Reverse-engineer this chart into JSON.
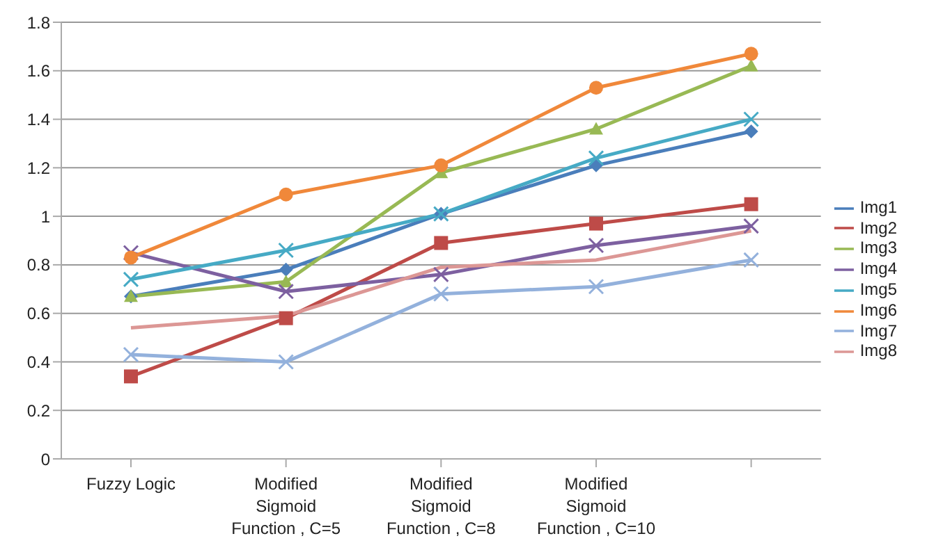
{
  "chart_data": {
    "type": "line",
    "categories": [
      "Fuzzy Logic",
      "Modified Sigmoid Function , C=5",
      "Modified Sigmoid Function , C=8",
      "Modified Sigmoid Function , C=10",
      null
    ],
    "series": [
      {
        "name": "Img1",
        "color": "#4a7ebb",
        "marker": "diamond",
        "values": [
          0.67,
          0.78,
          1.01,
          1.21,
          1.35
        ]
      },
      {
        "name": "Img2",
        "color": "#be4b48",
        "marker": "square",
        "values": [
          0.34,
          0.58,
          0.89,
          0.97,
          1.05
        ]
      },
      {
        "name": "Img3",
        "color": "#98b954",
        "marker": "triangle",
        "values": [
          0.67,
          0.73,
          1.18,
          1.36,
          1.62
        ]
      },
      {
        "name": "Img4",
        "color": "#7d60a0",
        "marker": "cross",
        "values": [
          0.85,
          0.69,
          0.76,
          0.88,
          0.96
        ]
      },
      {
        "name": "Img5",
        "color": "#46aac5",
        "marker": "cross",
        "values": [
          0.74,
          0.86,
          1.01,
          1.24,
          1.4
        ]
      },
      {
        "name": "Img6",
        "color": "#f0883a",
        "marker": "circle",
        "values": [
          0.83,
          1.09,
          1.21,
          1.53,
          1.67
        ]
      },
      {
        "name": "Img7",
        "color": "#93b1dc",
        "marker": "cross",
        "values": [
          0.43,
          0.4,
          0.68,
          0.71,
          0.82
        ]
      },
      {
        "name": "Img8",
        "color": "#dc9795",
        "marker": "none",
        "values": [
          0.54,
          0.59,
          0.79,
          0.82,
          0.94
        ]
      }
    ],
    "ylim": [
      0,
      1.8
    ],
    "yticks": [
      0,
      0.2,
      0.4,
      0.6,
      0.8,
      1,
      1.2,
      1.4,
      1.6,
      1.8
    ],
    "grid": "y",
    "legend": "right",
    "line_style": "solid"
  }
}
